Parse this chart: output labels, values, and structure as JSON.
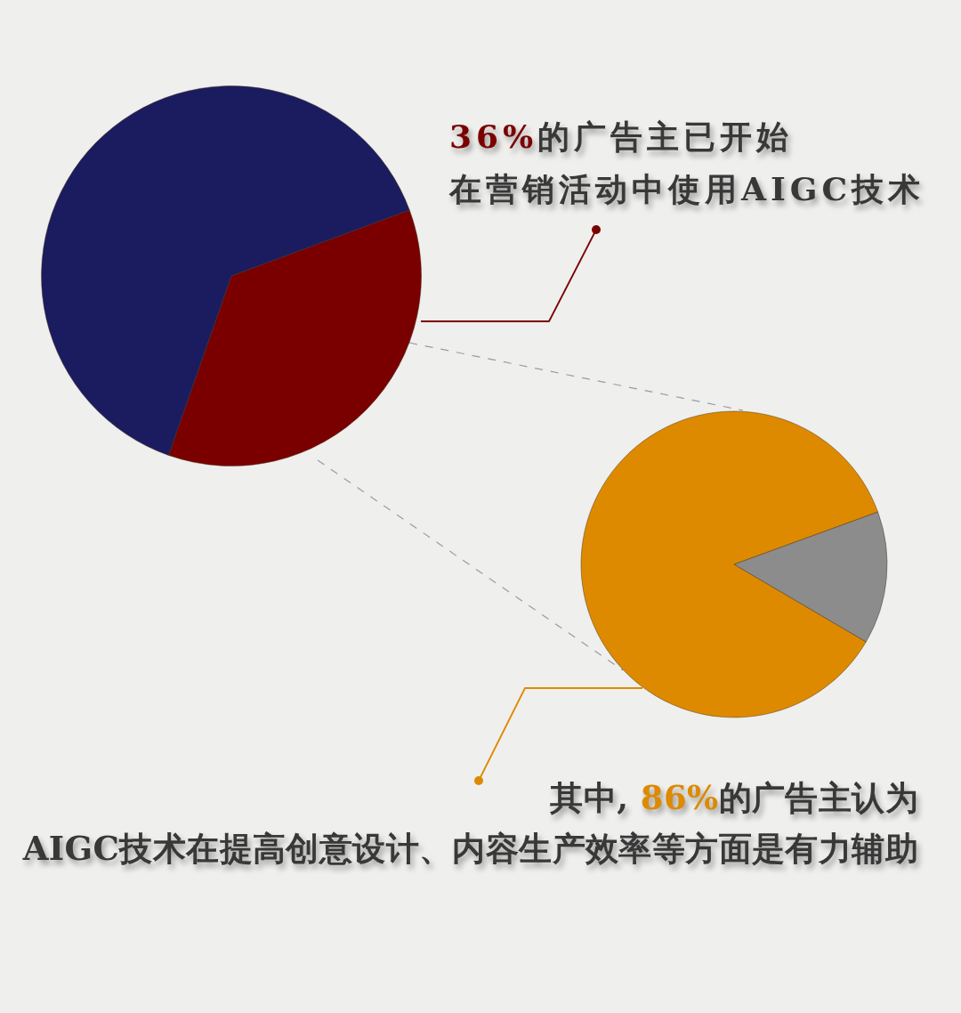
{
  "chart_data": [
    {
      "type": "pie",
      "categories": [
        null,
        null
      ],
      "values": [
        36,
        64
      ],
      "colors": [
        "#7a0000",
        "#1b1c5f"
      ],
      "annotations": [
        "36%的广告主已开始",
        "在营销活动中使用AIGC技术"
      ]
    },
    {
      "type": "pie",
      "categories": [
        null,
        null
      ],
      "values": [
        86,
        14
      ],
      "colors": [
        "#dd8a00",
        "#8c8c8c"
      ],
      "annotations": [
        "其中, 86%的广告主认为",
        "AIGC技术在提高创意设计、内容生产效率等方面是有力辅助"
      ]
    }
  ]
}
